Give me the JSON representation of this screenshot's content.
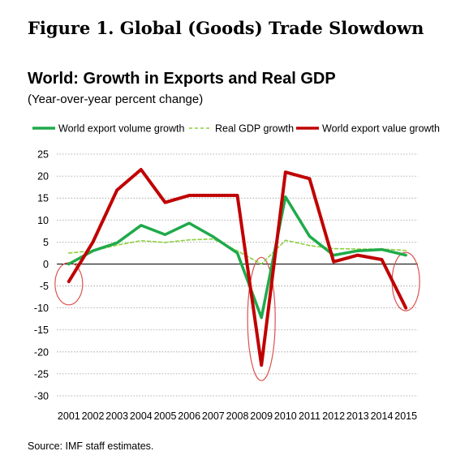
{
  "figure_title": "Figure 1. Global (Goods) Trade Slowdown",
  "source": "Source: IMF staff estimates.",
  "chart_data": {
    "type": "line",
    "title": "World: Growth in Exports and Real GDP",
    "subtitle": "(Year-over-year percent change)",
    "xlabel": "",
    "ylabel": "",
    "ylim": [
      -30,
      25
    ],
    "yticks": [
      25,
      20,
      15,
      10,
      5,
      0,
      -5,
      -10,
      -15,
      -20,
      -25,
      -30
    ],
    "grid": "horizontal",
    "legend": "top",
    "categories": [
      "2001",
      "2002",
      "2003",
      "2004",
      "2005",
      "2006",
      "2007",
      "2008",
      "2009",
      "2010",
      "2011",
      "2012",
      "2013",
      "2014",
      "2015"
    ],
    "series": [
      {
        "name": "World export volume growth",
        "color": "#1faa4a",
        "style": "solid",
        "values": [
          0,
          3,
          4.8,
          8.8,
          6.7,
          9.3,
          6.2,
          2.5,
          -12.2,
          15.3,
          6.3,
          2,
          3,
          3.3,
          2
        ]
      },
      {
        "name": "Real GDP growth",
        "color": "#8ccf3f",
        "style": "dashed",
        "values": [
          2.5,
          3,
          4.3,
          5.3,
          4.9,
          5.5,
          5.7,
          3,
          0,
          5.4,
          4.2,
          3.5,
          3.4,
          3.4,
          3.1
        ]
      },
      {
        "name": "World export value growth",
        "color": "#c00000",
        "style": "solid",
        "values": [
          -4,
          5,
          16.8,
          21.5,
          14,
          15.6,
          15.6,
          15.6,
          -23,
          20.9,
          19.4,
          0.5,
          2,
          1,
          -10
        ]
      }
    ],
    "highlights": [
      {
        "category": "2001",
        "color": "#d9534f"
      },
      {
        "category": "2009",
        "color": "#d9534f"
      },
      {
        "category": "2015",
        "color": "#d9534f"
      }
    ]
  }
}
